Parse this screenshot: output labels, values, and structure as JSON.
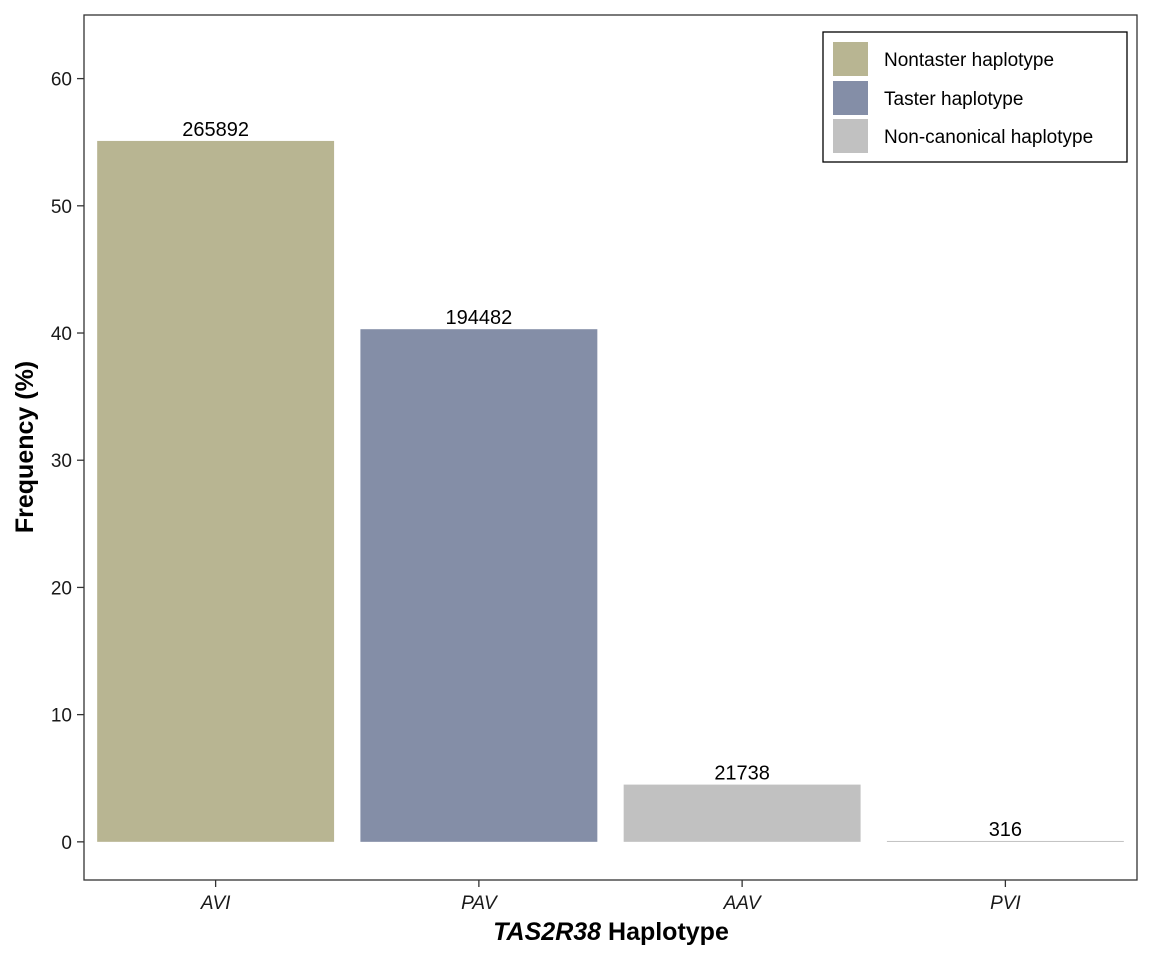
{
  "chart_data": {
    "type": "bar",
    "categories": [
      "AVI",
      "PAV",
      "AAV",
      "PVI"
    ],
    "values": [
      55.1,
      40.3,
      4.5,
      0.07
    ],
    "bar_labels": [
      "265892",
      "194482",
      "21738",
      "316"
    ],
    "bar_colors": [
      "#b8b592",
      "#848ea7",
      "#c1c1c1",
      "#c1c1c1"
    ],
    "xlabel_italic": "TAS2R38",
    "xlabel_rest": " Haplotype",
    "ylabel": "Frequency (%)",
    "ylim": [
      -3,
      65
    ],
    "yticks": [
      0,
      10,
      20,
      30,
      40,
      50,
      60
    ],
    "grid": false,
    "legend": {
      "placement": "top-right",
      "entries": [
        {
          "label": "Nontaster haplotype",
          "color": "#b8b592"
        },
        {
          "label": "Taster haplotype",
          "color": "#848ea7"
        },
        {
          "label": "Non-canonical haplotype",
          "color": "#c1c1c1"
        }
      ]
    }
  }
}
